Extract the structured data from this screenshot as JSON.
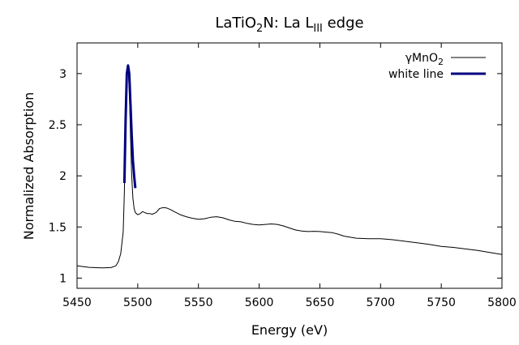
{
  "chart_data": {
    "type": "line",
    "title": {
      "main": "LaTiO",
      "sub2": "2",
      "mid": "N: La L",
      "sub3": "III",
      "tail": " edge"
    },
    "xlabel": "Energy (eV)",
    "ylabel": "Normalized Absorption",
    "xlim": [
      5450,
      5800
    ],
    "ylim": [
      0.9,
      3.3
    ],
    "x_ticks": [
      5450,
      5500,
      5550,
      5600,
      5650,
      5700,
      5750,
      5800
    ],
    "y_ticks": [
      1,
      1.5,
      2,
      2.5,
      3
    ],
    "y_tick_labels": [
      "1",
      "1.5",
      "2",
      "2.5",
      "3"
    ],
    "grid": false,
    "legend_position": "top-right",
    "series": [
      {
        "name": "γMnO",
        "name_sub": "2",
        "color": "#000000",
        "x": [
          5450,
          5460,
          5470,
          5478,
          5482,
          5484,
          5486,
          5488,
          5489,
          5490,
          5491,
          5492,
          5493,
          5494,
          5495,
          5496,
          5497,
          5498,
          5499,
          5500,
          5502,
          5504,
          5506,
          5508,
          5510,
          5512,
          5515,
          5518,
          5521,
          5524,
          5527,
          5530,
          5535,
          5540,
          5545,
          5550,
          5555,
          5560,
          5565,
          5570,
          5575,
          5580,
          5585,
          5590,
          5595,
          5600,
          5605,
          5610,
          5615,
          5620,
          5625,
          5630,
          5635,
          5640,
          5645,
          5650,
          5655,
          5660,
          5665,
          5670,
          5680,
          5690,
          5700,
          5710,
          5720,
          5730,
          5740,
          5750,
          5760,
          5770,
          5780,
          5790,
          5800
        ],
        "y": [
          1.12,
          1.105,
          1.1,
          1.103,
          1.12,
          1.16,
          1.24,
          1.45,
          1.85,
          2.6,
          3.0,
          3.07,
          2.85,
          2.4,
          2.0,
          1.78,
          1.68,
          1.64,
          1.63,
          1.62,
          1.63,
          1.65,
          1.64,
          1.63,
          1.63,
          1.625,
          1.64,
          1.68,
          1.69,
          1.685,
          1.67,
          1.65,
          1.62,
          1.6,
          1.585,
          1.575,
          1.58,
          1.595,
          1.6,
          1.59,
          1.57,
          1.555,
          1.55,
          1.535,
          1.525,
          1.52,
          1.525,
          1.53,
          1.525,
          1.51,
          1.49,
          1.47,
          1.46,
          1.455,
          1.458,
          1.455,
          1.45,
          1.445,
          1.43,
          1.41,
          1.39,
          1.385,
          1.385,
          1.375,
          1.36,
          1.345,
          1.33,
          1.31,
          1.3,
          1.285,
          1.27,
          1.25,
          1.23
        ]
      },
      {
        "name": "white line",
        "color": "#000080",
        "x": [
          5489,
          5490,
          5491,
          5492,
          5493,
          5494,
          5495,
          5496,
          5497,
          5498
        ],
        "y": [
          1.93,
          2.55,
          3.0,
          3.08,
          3.0,
          2.7,
          2.4,
          2.15,
          2.0,
          1.88
        ]
      }
    ]
  }
}
